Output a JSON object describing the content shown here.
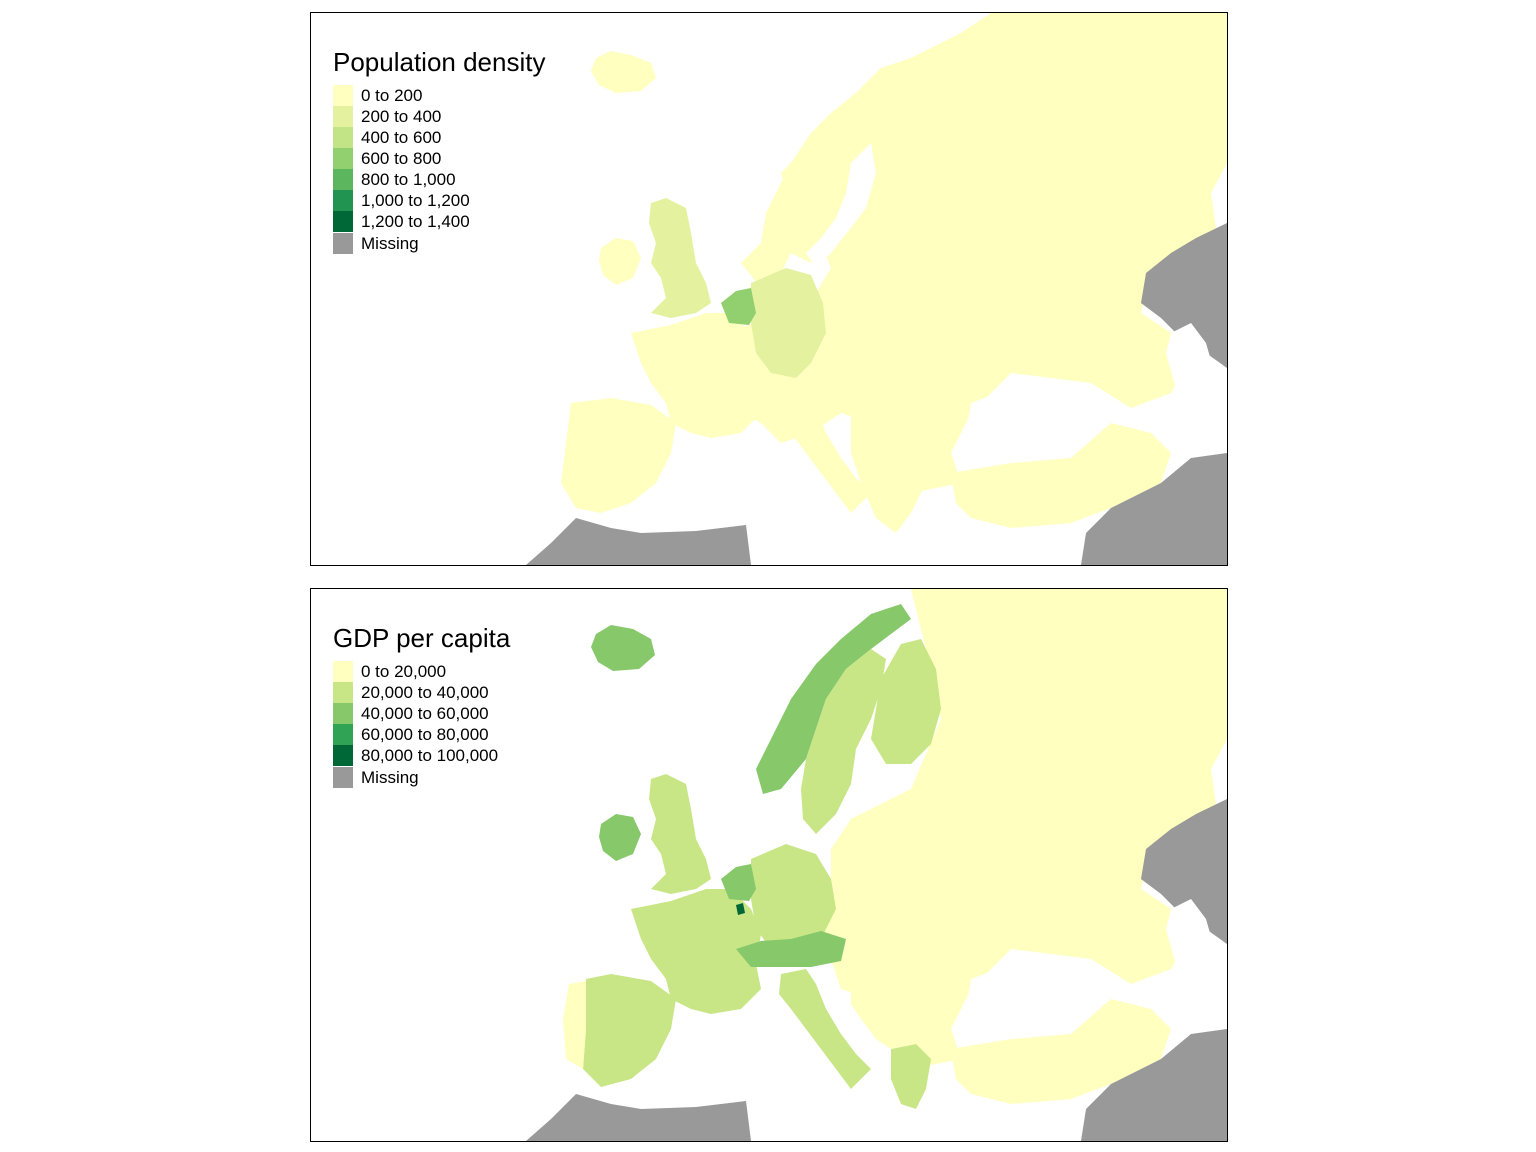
{
  "maps": [
    {
      "id": "population",
      "legend_title": "Population density",
      "classes": [
        {
          "label": "0 to 200",
          "color": "#FFFFC0"
        },
        {
          "label": "200 to 400",
          "color": "#E4F2A0"
        },
        {
          "label": "400 to 600",
          "color": "#C2E486"
        },
        {
          "label": "600 to 800",
          "color": "#92CF6E"
        },
        {
          "label": "800 to 1,000",
          "color": "#5CB65E"
        },
        {
          "label": "1,000 to 1,200",
          "color": "#229452"
        },
        {
          "label": "1,200 to 1,400",
          "color": "#006837"
        }
      ],
      "missing": {
        "label": "Missing",
        "color": "#999999"
      },
      "regions": [
        {
          "name": "Russia / Eastern Europe",
          "class": 0
        },
        {
          "name": "Scandinavia",
          "class": 0
        },
        {
          "name": "Iceland",
          "class": 0
        },
        {
          "name": "Ireland",
          "class": 0
        },
        {
          "name": "United Kingdom",
          "class": 1
        },
        {
          "name": "France",
          "class": 0
        },
        {
          "name": "Iberia",
          "class": 0
        },
        {
          "name": "Germany",
          "class": 1
        },
        {
          "name": "Benelux",
          "class": 3
        },
        {
          "name": "Italy",
          "class": 0
        },
        {
          "name": "Balkans",
          "class": 0
        },
        {
          "name": "Turkey",
          "class": 0
        },
        {
          "name": "North Africa",
          "class": "missing"
        },
        {
          "name": "Middle East",
          "class": "missing"
        },
        {
          "name": "Kazakhstan",
          "class": "missing"
        }
      ]
    },
    {
      "id": "gdp",
      "legend_title": "GDP per capita",
      "classes": [
        {
          "label": "0 to 20,000",
          "color": "#FFFFC0"
        },
        {
          "label": "20,000 to 40,000",
          "color": "#C8E686"
        },
        {
          "label": "40,000 to 60,000",
          "color": "#86C86A"
        },
        {
          "label": "60,000 to 80,000",
          "color": "#31A354"
        },
        {
          "label": "80,000 to 100,000",
          "color": "#006837"
        }
      ],
      "missing": {
        "label": "Missing",
        "color": "#999999"
      },
      "regions": [
        {
          "name": "Russia / Eastern Europe",
          "class": 0
        },
        {
          "name": "Norway",
          "class": 2
        },
        {
          "name": "Sweden",
          "class": 1
        },
        {
          "name": "Finland",
          "class": 1
        },
        {
          "name": "Iceland",
          "class": 2
        },
        {
          "name": "Ireland",
          "class": 2
        },
        {
          "name": "United Kingdom",
          "class": 1
        },
        {
          "name": "France",
          "class": 1
        },
        {
          "name": "Spain",
          "class": 1
        },
        {
          "name": "Portugal",
          "class": 0
        },
        {
          "name": "Germany",
          "class": 1
        },
        {
          "name": "Benelux",
          "class": 2
        },
        {
          "name": "Luxembourg",
          "class": 4
        },
        {
          "name": "Austria / Switzerland",
          "class": 2
        },
        {
          "name": "Italy",
          "class": 1
        },
        {
          "name": "Greece",
          "class": 1
        },
        {
          "name": "Balkans",
          "class": 0
        },
        {
          "name": "Turkey",
          "class": 0
        },
        {
          "name": "North Africa",
          "class": "missing"
        },
        {
          "name": "Middle East",
          "class": "missing"
        },
        {
          "name": "Kazakhstan",
          "class": "missing"
        }
      ]
    }
  ]
}
